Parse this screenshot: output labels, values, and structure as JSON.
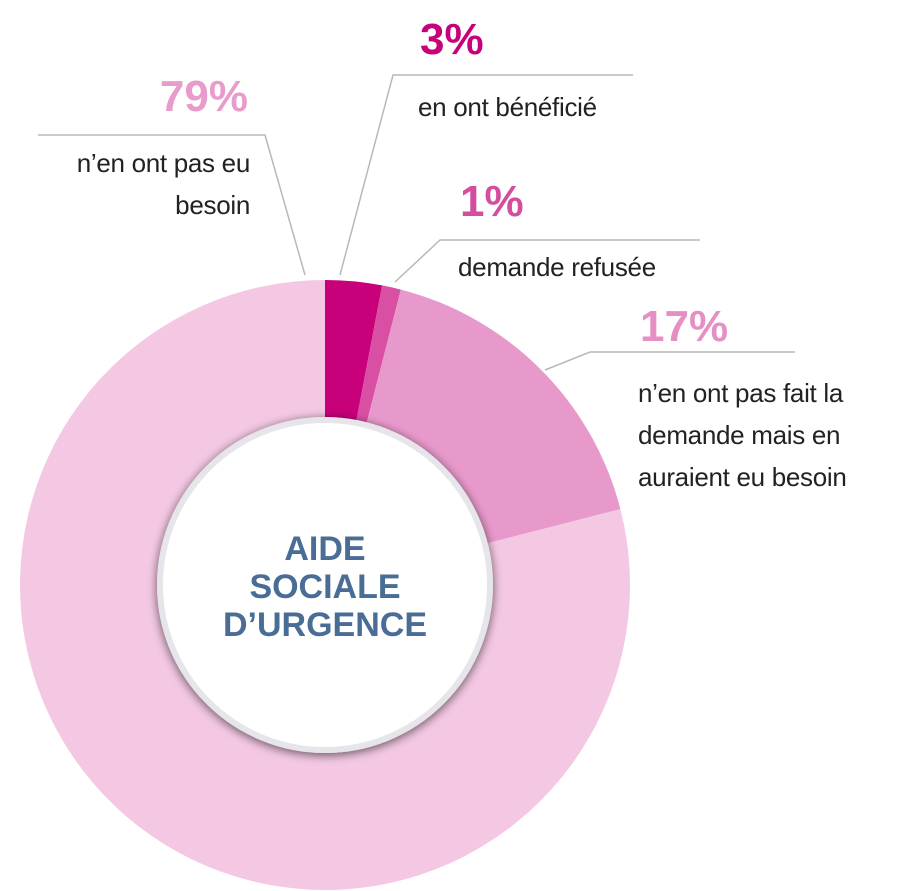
{
  "chart_data": {
    "type": "donut",
    "title": "AIDE SOCIALE D’URGENCE",
    "categories": [
      "en ont bénéficié",
      "demande refusée",
      "n’en ont pas fait la demande mais en auraient eu besoin",
      "n’en ont pas eu besoin"
    ],
    "values": [
      3,
      1,
      17,
      79
    ],
    "value_labels": [
      "3%",
      "1%",
      "17%",
      "79%"
    ],
    "colors": [
      "#c8007a",
      "#d94fa3",
      "#e899cb",
      "#f4c8e3"
    ],
    "label_colors": [
      "#c8007a",
      "#d44ea0",
      "#e58fc5",
      "#e99ccc"
    ]
  }
}
